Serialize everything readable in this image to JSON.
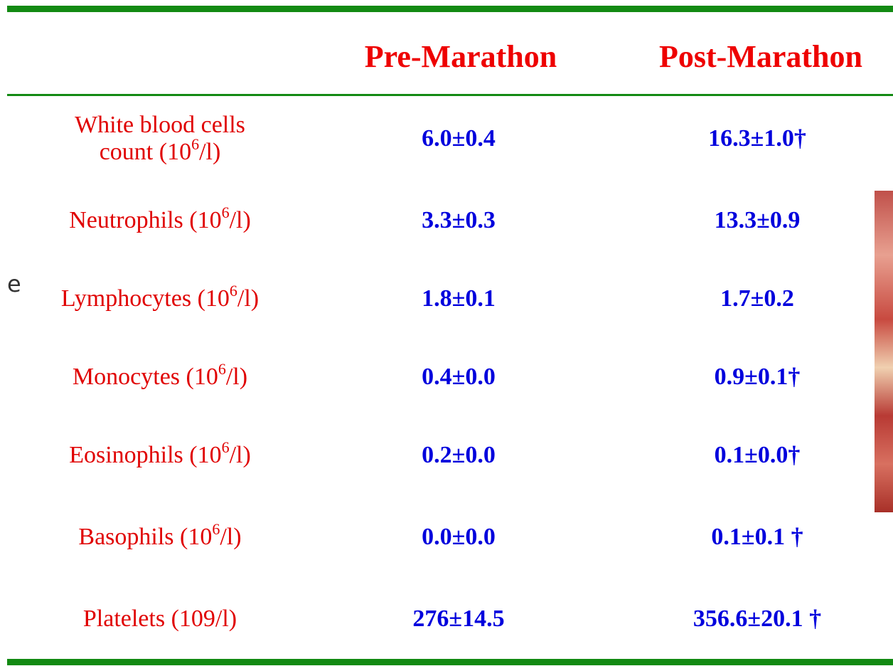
{
  "background_text": "e",
  "table": {
    "header": [
      "Pre-Marathon",
      "Post-Marathon"
    ],
    "rows": [
      {
        "label": {
          "line1": "White blood cells",
          "before": "count (10",
          "sup": "6",
          "after": "/l)"
        },
        "values": [
          "6.0±0.4",
          "16.3±1.0†"
        ]
      },
      {
        "label": {
          "before": "Neutrophils (10",
          "sup": "6",
          "after": "/l)"
        },
        "values": [
          "3.3±0.3",
          "13.3±0.9"
        ]
      },
      {
        "label": {
          "before": "Lymphocytes (10",
          "sup": "6",
          "after": "/l)"
        },
        "values": [
          "1.8±0.1",
          "1.7±0.2"
        ]
      },
      {
        "label": {
          "before": "Monocytes (10",
          "sup": "6",
          "after": "/l)"
        },
        "values": [
          "0.4±0.0",
          "0.9±0.1†"
        ]
      },
      {
        "label": {
          "before": "Eosinophils (10",
          "sup": "6",
          "after": "/l)"
        },
        "values": [
          "0.2±0.0",
          "0.1±0.0†"
        ]
      },
      {
        "label": {
          "before": "Basophils (10",
          "sup": "6",
          "after": "/l)"
        },
        "values": [
          "0.0±0.0",
          "0.1±0.1 †"
        ]
      },
      {
        "label": {
          "before": "Platelets (109/l)"
        },
        "values": [
          "276±14.5",
          "356.6±20.1 †"
        ]
      }
    ]
  }
}
